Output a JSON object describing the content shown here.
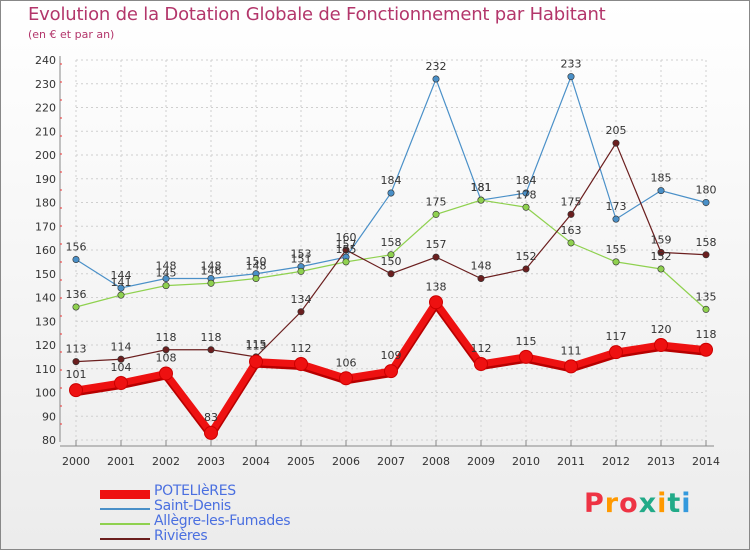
{
  "title": "Evolution de la Dotation Globale de Fonctionnement par Habitant",
  "subtitle": "(en € et par an)",
  "logo_text": "Proxiti",
  "chart_data": {
    "type": "line",
    "x": [
      "2000",
      "2001",
      "2002",
      "2003",
      "2004",
      "2005",
      "2006",
      "2007",
      "2008",
      "2009",
      "2010",
      "2011",
      "2012",
      "2013",
      "2014"
    ],
    "ylim": [
      80,
      240
    ],
    "yticks": [
      80,
      90,
      100,
      110,
      120,
      130,
      140,
      150,
      160,
      170,
      180,
      190,
      200,
      210,
      220,
      230,
      240
    ],
    "grid": true,
    "legend_position": "bottom-left",
    "series": [
      {
        "name": "Saint-Denis",
        "color": "#4a90c8",
        "values": [
          156,
          144,
          148,
          148,
          150,
          153,
          157,
          184,
          232,
          181,
          184,
          233,
          173,
          185,
          180
        ]
      },
      {
        "name": "Allègre-les-Fumades",
        "color": "#8fd14f",
        "values": [
          136,
          141,
          145,
          146,
          148,
          151,
          155,
          158,
          175,
          181,
          178,
          163,
          155,
          152,
          135
        ]
      },
      {
        "name": "Rivières",
        "color": "#6b1f1f",
        "values": [
          113,
          114,
          118,
          118,
          115,
          134,
          160,
          150,
          157,
          148,
          152,
          175,
          205,
          159,
          158
        ]
      },
      {
        "name": "POTELIèRES",
        "color": "#ee1111",
        "values": [
          101,
          104,
          108,
          83,
          113,
          112,
          106,
          109,
          138,
          112,
          115,
          111,
          117,
          120,
          118
        ]
      }
    ]
  }
}
